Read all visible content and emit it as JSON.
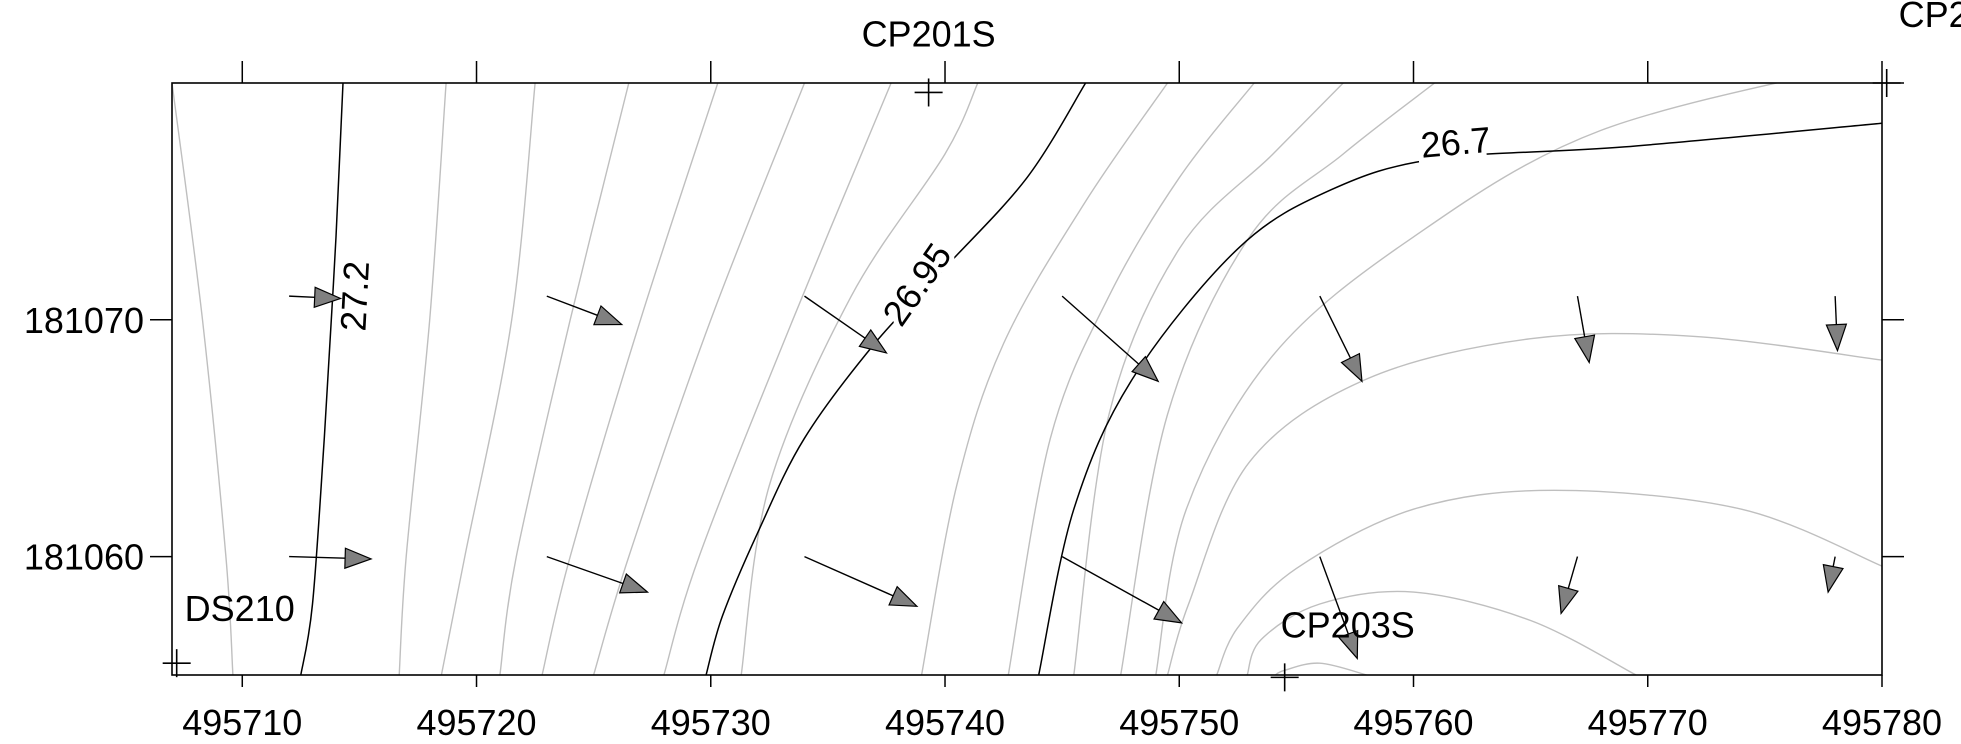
{
  "chart_data": {
    "type": "contour",
    "x_ticks": [
      495710,
      495720,
      495730,
      495740,
      495750,
      495760,
      495770,
      495780
    ],
    "y_ticks": [
      181060,
      181070
    ],
    "xlim": [
      495707,
      495780
    ],
    "ylim": [
      181055,
      181080
    ],
    "contour_levels_labeled": [
      {
        "level": "27.2",
        "x": 495714.8,
        "y": 181071.0,
        "angle": -87
      },
      {
        "level": "26.95",
        "x": 495738.8,
        "y": 181071.5,
        "angle": -55
      },
      {
        "level": "26.7",
        "x": 495761.8,
        "y": 181077.5,
        "angle": -5
      }
    ],
    "contours": {
      "major": [
        [
          [
            495714.3,
            181080
          ],
          [
            495714.0,
            181073.5
          ],
          [
            495713.8,
            181070
          ],
          [
            495713.5,
            181065
          ],
          [
            495713.0,
            181058
          ],
          [
            495712.5,
            181055
          ]
        ],
        [
          [
            495746.0,
            181080
          ],
          [
            495743.5,
            181076
          ],
          [
            495740.0,
            181072.2
          ],
          [
            495737.0,
            181069
          ],
          [
            495734.0,
            181065
          ],
          [
            495732.0,
            181061
          ],
          [
            495730.5,
            181057.5
          ],
          [
            495729.8,
            181055
          ]
        ],
        [
          [
            495780,
            181078.3
          ],
          [
            495769,
            181077.3
          ],
          [
            495761,
            181076.8
          ],
          [
            495756.5,
            181075.5
          ],
          [
            495752.5,
            181073
          ],
          [
            495748,
            181067.5
          ],
          [
            495745.5,
            181062
          ],
          [
            495744,
            181055
          ]
        ]
      ],
      "minor": [
        [
          [
            495707,
            181080
          ],
          [
            495708.3,
            181070
          ],
          [
            495709.3,
            181060
          ],
          [
            495709.6,
            181055
          ]
        ],
        [
          [
            495718.7,
            181080
          ],
          [
            495718,
            181070
          ],
          [
            495717,
            181060
          ],
          [
            495716.7,
            181055
          ]
        ],
        [
          [
            495722.5,
            181080
          ],
          [
            495721.5,
            181070
          ],
          [
            495719.5,
            181060
          ],
          [
            495718.5,
            181055
          ]
        ],
        [
          [
            495726.5,
            181080
          ],
          [
            495724,
            181070
          ],
          [
            495721.7,
            181060
          ],
          [
            495721,
            181055
          ]
        ],
        [
          [
            495730.3,
            181080
          ],
          [
            495727,
            181070
          ],
          [
            495724,
            181060
          ],
          [
            495722.8,
            181055
          ]
        ],
        [
          [
            495734,
            181080
          ],
          [
            495730,
            181070
          ],
          [
            495726.5,
            181060
          ],
          [
            495725,
            181055
          ]
        ],
        [
          [
            495737.7,
            181080
          ],
          [
            495733.5,
            181070
          ],
          [
            495729.5,
            181060
          ],
          [
            495728,
            181055
          ]
        ],
        [
          [
            495741.4,
            181080
          ],
          [
            495740,
            181077
          ],
          [
            495736,
            181071
          ],
          [
            495732.5,
            181063
          ],
          [
            495731.3,
            181055
          ]
        ],
        [
          [
            495749.5,
            181080
          ],
          [
            495746,
            181075
          ],
          [
            495742.5,
            181069
          ],
          [
            495740.5,
            181063
          ],
          [
            495739,
            181055
          ]
        ],
        [
          [
            495753.2,
            181080
          ],
          [
            495750,
            181076
          ],
          [
            495747,
            181071
          ],
          [
            495744.5,
            181065
          ],
          [
            495742.7,
            181055
          ]
        ],
        [
          [
            495757,
            181080
          ],
          [
            495754,
            181077
          ],
          [
            495750,
            181073
          ],
          [
            495747,
            181066
          ],
          [
            495745.5,
            181055
          ]
        ],
        [
          [
            495760.9,
            181080
          ],
          [
            495757,
            181077
          ],
          [
            495753,
            181073.5
          ],
          [
            495749.5,
            181066
          ],
          [
            495747.5,
            181055
          ]
        ],
        [
          [
            495780,
            181081
          ],
          [
            495768,
            181078
          ],
          [
            495760,
            181073.5
          ],
          [
            495754,
            181068.5
          ],
          [
            495750.3,
            181062
          ],
          [
            495749,
            181055
          ]
        ],
        [
          [
            495780,
            181068.3
          ],
          [
            495772,
            181069.3
          ],
          [
            495765,
            181069.2
          ],
          [
            495758,
            181067.5
          ],
          [
            495753,
            181064
          ],
          [
            495750.4,
            181058
          ],
          [
            495749.5,
            181055
          ]
        ],
        [
          [
            495780,
            181059.6
          ],
          [
            495774,
            181062
          ],
          [
            495766,
            181062.8
          ],
          [
            495760,
            181062
          ],
          [
            495755,
            181059.5
          ],
          [
            495752.5,
            181057
          ],
          [
            495751.6,
            181055
          ]
        ],
        [
          [
            495769.5,
            181055
          ],
          [
            495765,
            181057.3
          ],
          [
            495760,
            181058.5
          ],
          [
            495756,
            181058
          ],
          [
            495753.5,
            181056.5
          ],
          [
            495752.9,
            181055
          ]
        ],
        [
          [
            495758,
            181055
          ],
          [
            495756,
            181055.5
          ],
          [
            495754.5,
            181055.2
          ],
          [
            495754.1,
            181055
          ]
        ]
      ]
    },
    "vectors": [
      [
        [
          495712,
          181071.0
        ],
        [
          495714.2,
          181070.9
        ]
      ],
      [
        [
          495723,
          181071.0
        ],
        [
          495726.2,
          181069.8
        ]
      ],
      [
        [
          495734,
          181071.0
        ],
        [
          495737.5,
          181068.6
        ]
      ],
      [
        [
          495745,
          181071.0
        ],
        [
          495749.1,
          181067.4
        ]
      ],
      [
        [
          495756,
          181071.0
        ],
        [
          495757.8,
          181067.4
        ]
      ],
      [
        [
          495767,
          181071.0
        ],
        [
          495767.5,
          181068.2
        ]
      ],
      [
        [
          495778,
          181071.0
        ],
        [
          495778.1,
          181068.7
        ]
      ],
      [
        [
          495712,
          181060.0
        ],
        [
          495715.5,
          181059.9
        ]
      ],
      [
        [
          495723,
          181060.0
        ],
        [
          495727.3,
          181058.5
        ]
      ],
      [
        [
          495734,
          181060.0
        ],
        [
          495738.8,
          181057.9
        ]
      ],
      [
        [
          495745,
          181060.0
        ],
        [
          495750.1,
          181057.2
        ]
      ],
      [
        [
          495756,
          181060.0
        ],
        [
          495757.6,
          181055.7
        ]
      ],
      [
        [
          495767,
          181060.0
        ],
        [
          495766.3,
          181057.6
        ]
      ],
      [
        [
          495778,
          181060.0
        ],
        [
          495777.7,
          181058.5
        ]
      ]
    ],
    "wells": [
      {
        "name": "CP201S",
        "x": 495739.3,
        "y": 181079.6
      },
      {
        "name": "DS210",
        "x": 495707.2,
        "y": 181055.5
      },
      {
        "name": "CP203S",
        "x": 495754.5,
        "y": 181054.9
      },
      {
        "name": "CP2",
        "x": 495780.2,
        "y": 181080
      }
    ],
    "colors": {
      "major_contour": "#000000",
      "minor_contour": "#bfbfbf",
      "arrow_fill": "#808080",
      "frame": "#000000"
    }
  }
}
